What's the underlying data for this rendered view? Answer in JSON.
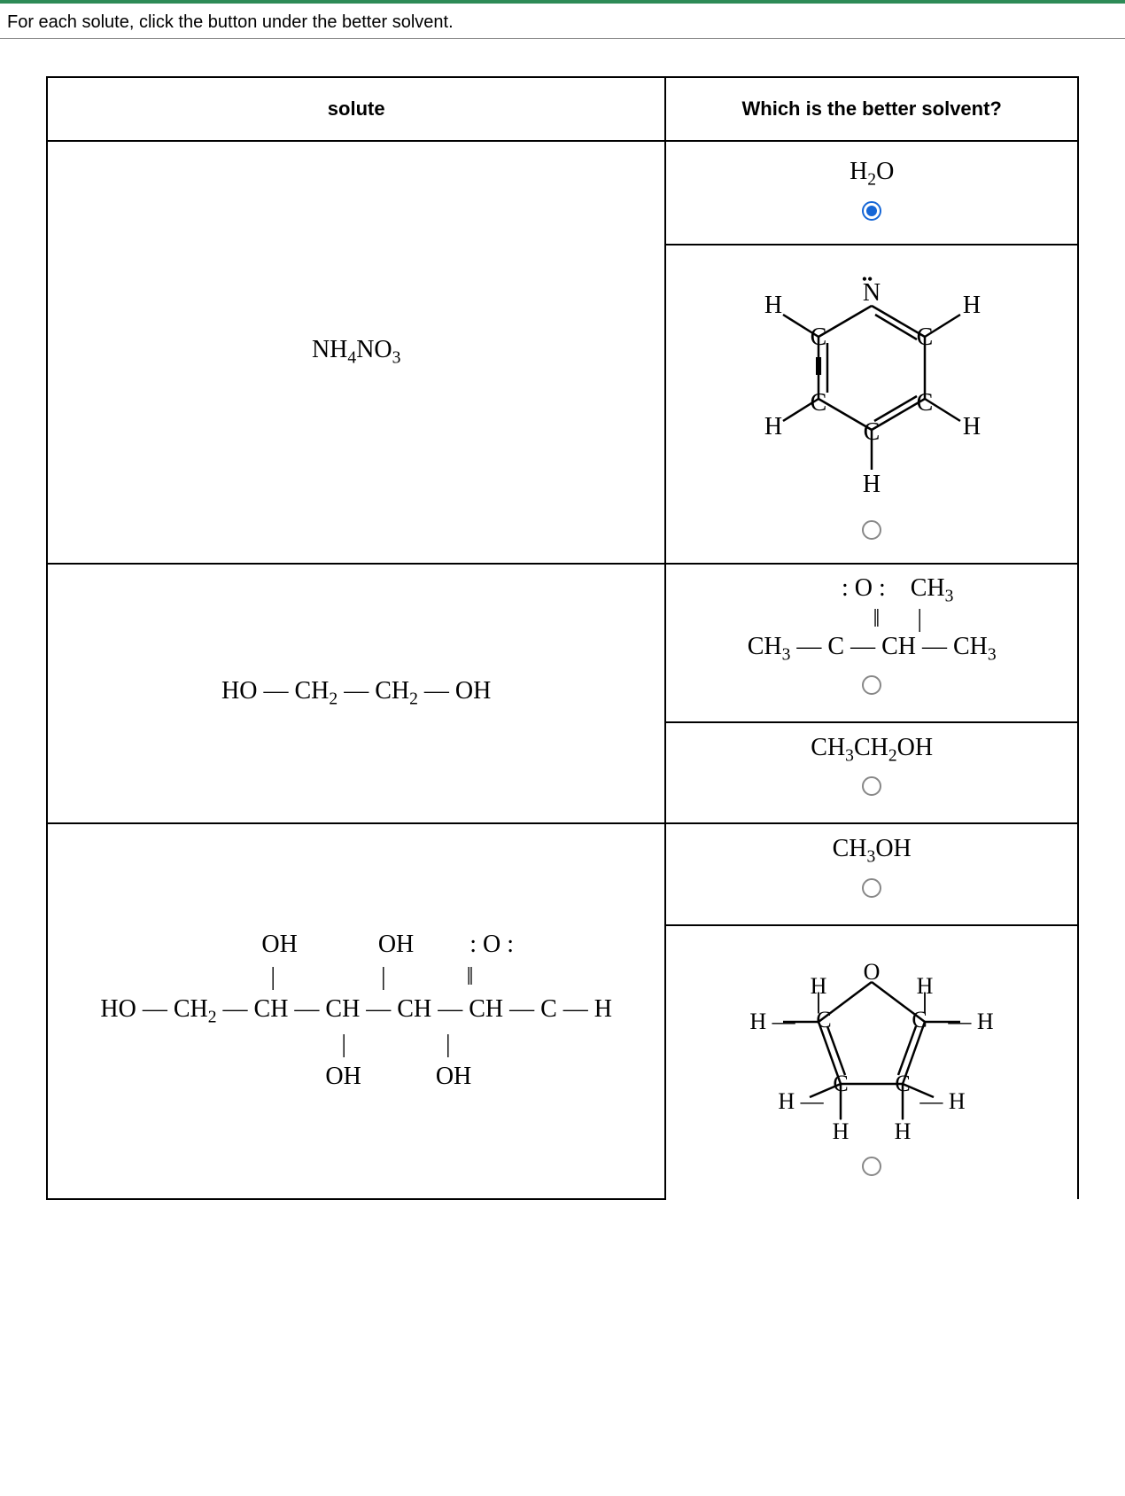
{
  "accent_color": "#2e8b57",
  "radio_checked_color": "#1566d6",
  "instruction": "For each solute, click the button under the better solvent.",
  "headers": {
    "solute": "solute",
    "solvent": "Which is the better solvent?"
  },
  "row1": {
    "solute_html": "NH<sub>4</sub>NO<sub>3</sub>",
    "solventA_html": "H<sub>2</sub>O",
    "solventA_checked": true,
    "solventB_checked": false,
    "pyridine": {
      "labels": [
        "H",
        "H",
        "H",
        "H",
        "H",
        "N",
        "C",
        "C",
        "C",
        "C",
        "C"
      ],
      "font_family": "Times New Roman",
      "font_size": 28,
      "colors": {
        "line": "#000000",
        "text": "#000000"
      }
    }
  },
  "row2": {
    "solute_html": "HO — CH<sub>2</sub> — CH<sub>2</sub> — OH",
    "solventA_checked": false,
    "ketone": {
      "line1_html": ": O :&nbsp;&nbsp;&nbsp;&nbsp;CH<sub>3</sub>",
      "line2_html": "‖&nbsp;&nbsp;&nbsp;&nbsp;&nbsp;&nbsp;|",
      "line3_html": "CH<sub>3</sub> — C — CH — CH<sub>3</sub>"
    },
    "solventB_html": "CH<sub>3</sub>CH<sub>2</sub>OH",
    "solventB_checked": false
  },
  "row3": {
    "solute": {
      "line1_html": "OH&nbsp;&nbsp;&nbsp;&nbsp;&nbsp;&nbsp;&nbsp;&nbsp;&nbsp;&nbsp;&nbsp;&nbsp;&nbsp;OH&nbsp;&nbsp;&nbsp;&nbsp;&nbsp;&nbsp;&nbsp;&nbsp;&nbsp;: O :",
      "line2_html": "|&nbsp;&nbsp;&nbsp;&nbsp;&nbsp;&nbsp;&nbsp;&nbsp;&nbsp;&nbsp;&nbsp;&nbsp;&nbsp;&nbsp;&nbsp;&nbsp;&nbsp;|&nbsp;&nbsp;&nbsp;&nbsp;&nbsp;&nbsp;&nbsp;&nbsp;&nbsp;&nbsp;&nbsp;&nbsp;&nbsp;‖",
      "line3_html": "HO — CH<sub>2</sub> — CH — CH — CH — CH — C — H",
      "line4_html": "|&nbsp;&nbsp;&nbsp;&nbsp;&nbsp;&nbsp;&nbsp;&nbsp;&nbsp;&nbsp;&nbsp;&nbsp;&nbsp;&nbsp;&nbsp;&nbsp;|",
      "line5_html": "OH&nbsp;&nbsp;&nbsp;&nbsp;&nbsp;&nbsp;&nbsp;&nbsp;&nbsp;&nbsp;&nbsp;&nbsp;OH"
    },
    "solventA_html": "CH<sub>3</sub>OH",
    "solventA_checked": false,
    "solventB_checked": false,
    "furan": {
      "labels": [
        "O",
        "H",
        "H",
        "H",
        "H",
        "H",
        "H",
        "H",
        "H",
        "C",
        "C",
        "C",
        "C"
      ],
      "font_family": "Times New Roman",
      "font_size": 28,
      "colors": {
        "line": "#000000",
        "text": "#000000"
      }
    }
  }
}
